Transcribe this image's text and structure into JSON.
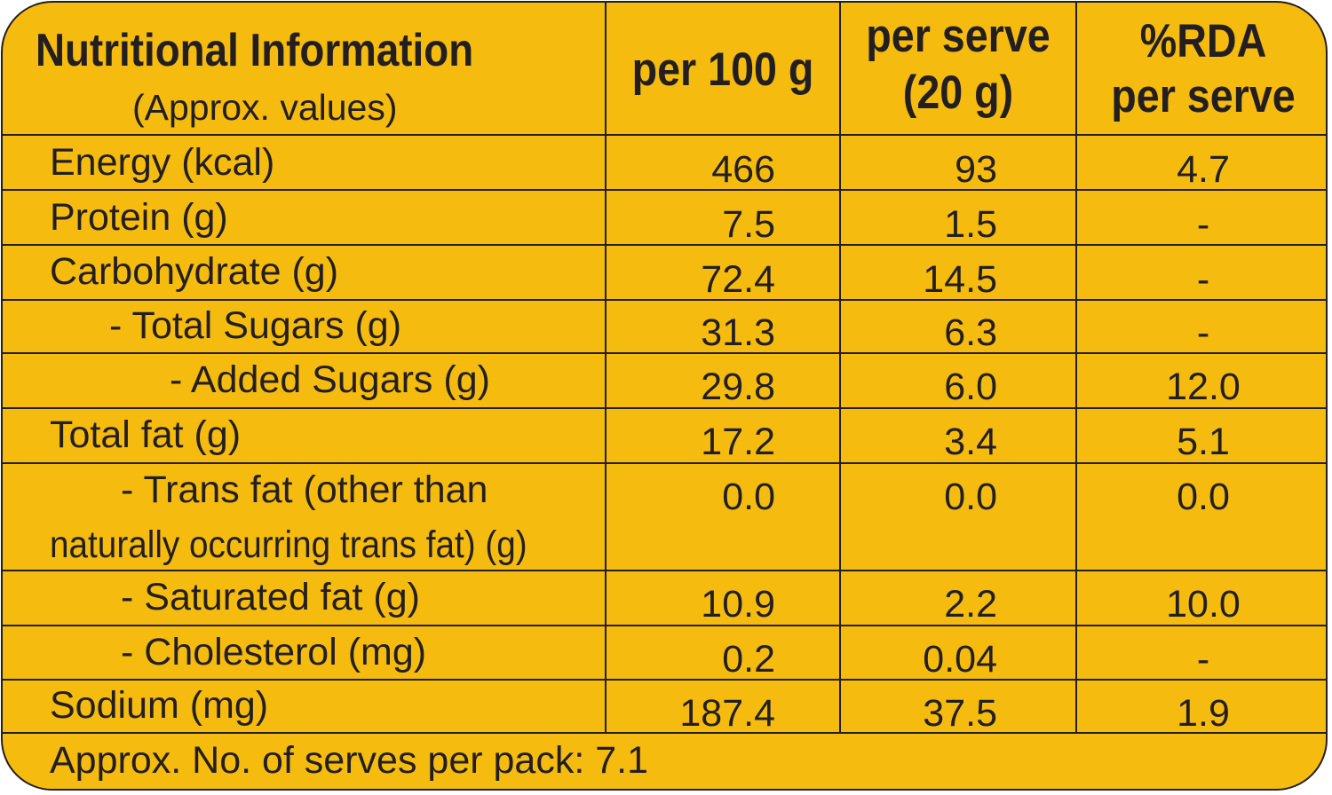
{
  "header": {
    "title": "Nutritional Information",
    "subtitle": "(Approx. values)",
    "col_per100": "per 100 g",
    "col_serve_line1": "per serve",
    "col_serve_line2": "(20 g)",
    "col_rda_line1": "%RDA",
    "col_rda_line2": "per serve"
  },
  "rows": [
    {
      "label": "Energy (kcal)",
      "per100": "466",
      "serve": "93",
      "rda": "4.7"
    },
    {
      "label": "Protein (g)",
      "per100": "7.5",
      "serve": "1.5",
      "rda": "-"
    },
    {
      "label": "Carbohydrate (g)",
      "per100": "72.4",
      "serve": "14.5",
      "rda": "-"
    },
    {
      "label": "- Total Sugars (g)",
      "per100": "31.3",
      "serve": "6.3",
      "rda": "-"
    },
    {
      "label": "- Added Sugars (g)",
      "per100": "29.8",
      "serve": "6.0",
      "rda": "12.0"
    },
    {
      "label": "Total fat (g)",
      "per100": "17.2",
      "serve": "3.4",
      "rda": "5.1"
    },
    {
      "label": "- Trans fat (other than",
      "label_line2": "naturally occurring trans fat) (g)",
      "per100": "0.0",
      "serve": "0.0",
      "rda": "0.0"
    },
    {
      "label": "- Saturated fat (g)",
      "per100": "10.9",
      "serve": "2.2",
      "rda": "10.0"
    },
    {
      "label": "- Cholesterol (mg)",
      "per100": "0.2",
      "serve": "0.04",
      "rda": "-"
    },
    {
      "label": "Sodium (mg)",
      "per100": "187.4",
      "serve": "37.5",
      "rda": "1.9"
    }
  ],
  "footer": "Approx. No. of serves per pack: 7.1",
  "colors": {
    "background": "#f5bb0f",
    "ink": "#231f20"
  }
}
